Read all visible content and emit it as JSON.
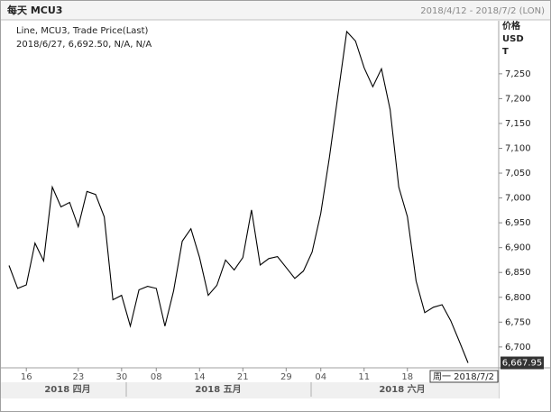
{
  "chart_data": {
    "type": "line",
    "title": "每天 MCU3",
    "subtitle": "2018/4/12 - 2018/7/2 (LON)",
    "legend_lines": [
      "Line, MCU3, Trade Price(Last)",
      "2018/6/27, 6,692.50, N/A, N/A"
    ],
    "y_axis_label": [
      "价格",
      "USD",
      "T"
    ],
    "months": [
      "2018 四月",
      "2018 五月",
      "2018 六月"
    ],
    "end_date_label": "周一 2018/7/2",
    "categories": [
      null,
      null,
      "16",
      null,
      null,
      null,
      null,
      null,
      "23",
      null,
      null,
      null,
      null,
      "30",
      null,
      null,
      null,
      "08",
      null,
      null,
      null,
      null,
      "14",
      null,
      null,
      null,
      null,
      "21",
      null,
      null,
      null,
      null,
      "29",
      null,
      null,
      null,
      "04",
      null,
      null,
      null,
      null,
      "11",
      null,
      null,
      null,
      null,
      "18",
      null,
      null,
      null,
      null,
      null,
      null,
      null
    ],
    "series": [
      {
        "color": "#000000",
        "values": [
          6864,
          6818,
          6825,
          6909,
          6873,
          7022,
          6982,
          6991,
          6942,
          7013,
          7007,
          6962,
          6795,
          6804,
          6742,
          6815,
          6822,
          6818,
          6742,
          6813,
          6913,
          6938,
          6880,
          6804,
          6824,
          6875,
          6855,
          6880,
          6976,
          6865,
          6878,
          6882,
          6860,
          6838,
          6853,
          6891,
          6969,
          7082,
          7209,
          7335,
          7316,
          7262,
          7224,
          7260,
          7178,
          7022,
          6962,
          6833,
          6769,
          6780,
          6785,
          6753,
          6711,
          6667.95
        ],
        "value_labels": [
          null,
          null,
          null,
          null,
          null,
          null,
          null,
          null,
          null,
          null,
          null,
          null,
          null,
          null,
          null,
          null,
          null,
          null,
          null,
          null,
          null,
          null,
          null,
          null,
          null,
          null,
          null,
          null,
          null,
          null,
          null,
          null,
          null,
          null,
          null,
          null,
          null,
          null,
          null,
          null,
          null,
          null,
          null,
          null,
          null,
          null,
          null,
          null,
          null,
          null,
          null,
          null,
          null,
          "6,667.95"
        ]
      }
    ],
    "ylim": [
      6658,
      7355
    ],
    "yticks": [
      {
        "value": 6700,
        "label": "6,700"
      },
      {
        "value": 6750,
        "label": "6,750"
      },
      {
        "value": 6800,
        "label": "6,800"
      },
      {
        "value": 6850,
        "label": "6,850"
      },
      {
        "value": 6900,
        "label": "6,900"
      },
      {
        "value": 6950,
        "label": "6,950"
      },
      {
        "value": 7000,
        "label": "7,000"
      },
      {
        "value": 7050,
        "label": "7,050"
      },
      {
        "value": 7100,
        "label": "7,100"
      },
      {
        "value": 7150,
        "label": "7,150"
      },
      {
        "value": 7200,
        "label": "7,200"
      },
      {
        "value": 7250,
        "label": "7,250"
      }
    ],
    "grid": false
  }
}
